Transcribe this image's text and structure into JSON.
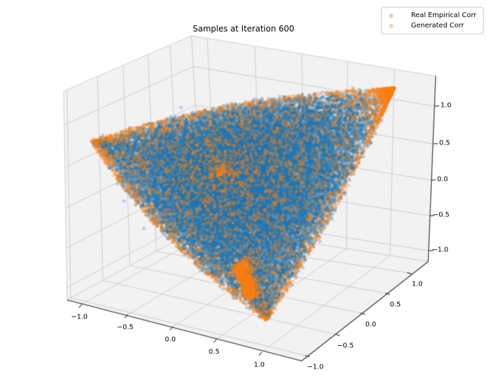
{
  "title": "Samples at Iteration 600",
  "legend": {
    "items": [
      {
        "label": "Real Empirical Corr",
        "color": "#1f77b4",
        "alpha": 0.3
      },
      {
        "label": "Generated Corr",
        "color": "#ff7f0e",
        "alpha": 0.35
      }
    ]
  },
  "colors": {
    "background": "#ffffff",
    "pane": "#f2f2f3",
    "pane_edge": "#cfcfcf",
    "grid": "#cdcdd1",
    "spine": "#2f2f2f",
    "text": "#000000",
    "blue": "#1f77b4",
    "orange": "#ff7f0e"
  },
  "chart_data": {
    "type": "scatter",
    "projection": "3d",
    "title": "Samples at Iteration 600",
    "view": {
      "elev": 30,
      "azim": -60,
      "proj_type": "persp"
    },
    "grid": true,
    "legend_position": "upper right",
    "axes": {
      "x": {
        "ticks": [
          -1.0,
          -0.5,
          0.0,
          0.5,
          1.0
        ],
        "tick_labels": [
          "−1.0",
          "−0.5",
          "0.0",
          "0.5",
          "1.0"
        ],
        "range": [
          -1.17,
          1.17
        ]
      },
      "y": {
        "ticks": [
          -1.0,
          -0.5,
          0.0,
          0.5,
          1.0
        ],
        "tick_labels": [
          "−1.0",
          "−0.5",
          "0.0",
          "0.5",
          "1.0"
        ],
        "range": [
          -1.17,
          1.17
        ]
      },
      "z": {
        "ticks": [
          -1.0,
          -0.5,
          0.0,
          0.5,
          1.0
        ],
        "tick_labels": [
          "−1.0",
          "−0.5",
          "0.0",
          "0.5",
          "1.0"
        ],
        "range": [
          -1.17,
          1.17
        ]
      }
    },
    "series": [
      {
        "name": "Real Empirical Corr",
        "color": "#1f77b4",
        "marker_alpha": 0.28,
        "marker_radius_px": 2.5,
        "n_points": 35560,
        "seed": 7,
        "distribution": "approximately uniform over the elliptope of valid 3x3 correlation matrices (1 + 2abc - a^2 - b^2 - c^2 >= 0, |a|,|b|,|c| <= 1), small jitter, extra density near vertices (1,-1,-1) and (-1,-1,1), sparse stray points outside the hull",
        "components": [
          {
            "kind": "uniform_elliptope",
            "n": 34000,
            "jitter_sigma": 0.018
          },
          {
            "kind": "stray_fringe",
            "n": 160,
            "jitter_sigma": 0.07
          },
          {
            "kind": "vertex_boost",
            "vertex": [
              1,
              -1,
              -1
            ],
            "n": 900,
            "max_scale": 0.38
          },
          {
            "kind": "vertex_boost",
            "vertex": [
              -1,
              -1,
              1
            ],
            "n": 500,
            "max_scale": 0.3
          }
        ]
      },
      {
        "name": "Generated Corr",
        "color": "#ff7f0e",
        "marker_alpha": 0.33,
        "marker_radius_px": 2.3,
        "n_points": 7200,
        "seed": 7,
        "distribution": "concentrated on the elliptope boundary (rank-2 correlation matrices from angle triples), dense spike at vertex (1,1,1), vertical streak artifact near the bottom vertex (c ~ -0.97 face), sparse interior points",
        "components": [
          {
            "kind": "rank2_boundary",
            "n": 3800,
            "jitter_sigma": 0.008
          },
          {
            "kind": "vertex_cluster_111",
            "n": 1900,
            "angle_sigma_range": [
              0.04,
              0.42
            ]
          },
          {
            "kind": "bottom_streak",
            "n": 700,
            "c_level": -0.97
          },
          {
            "kind": "uniform_elliptope",
            "n": 800,
            "jitter_sigma": 0.01
          }
        ]
      }
    ]
  }
}
